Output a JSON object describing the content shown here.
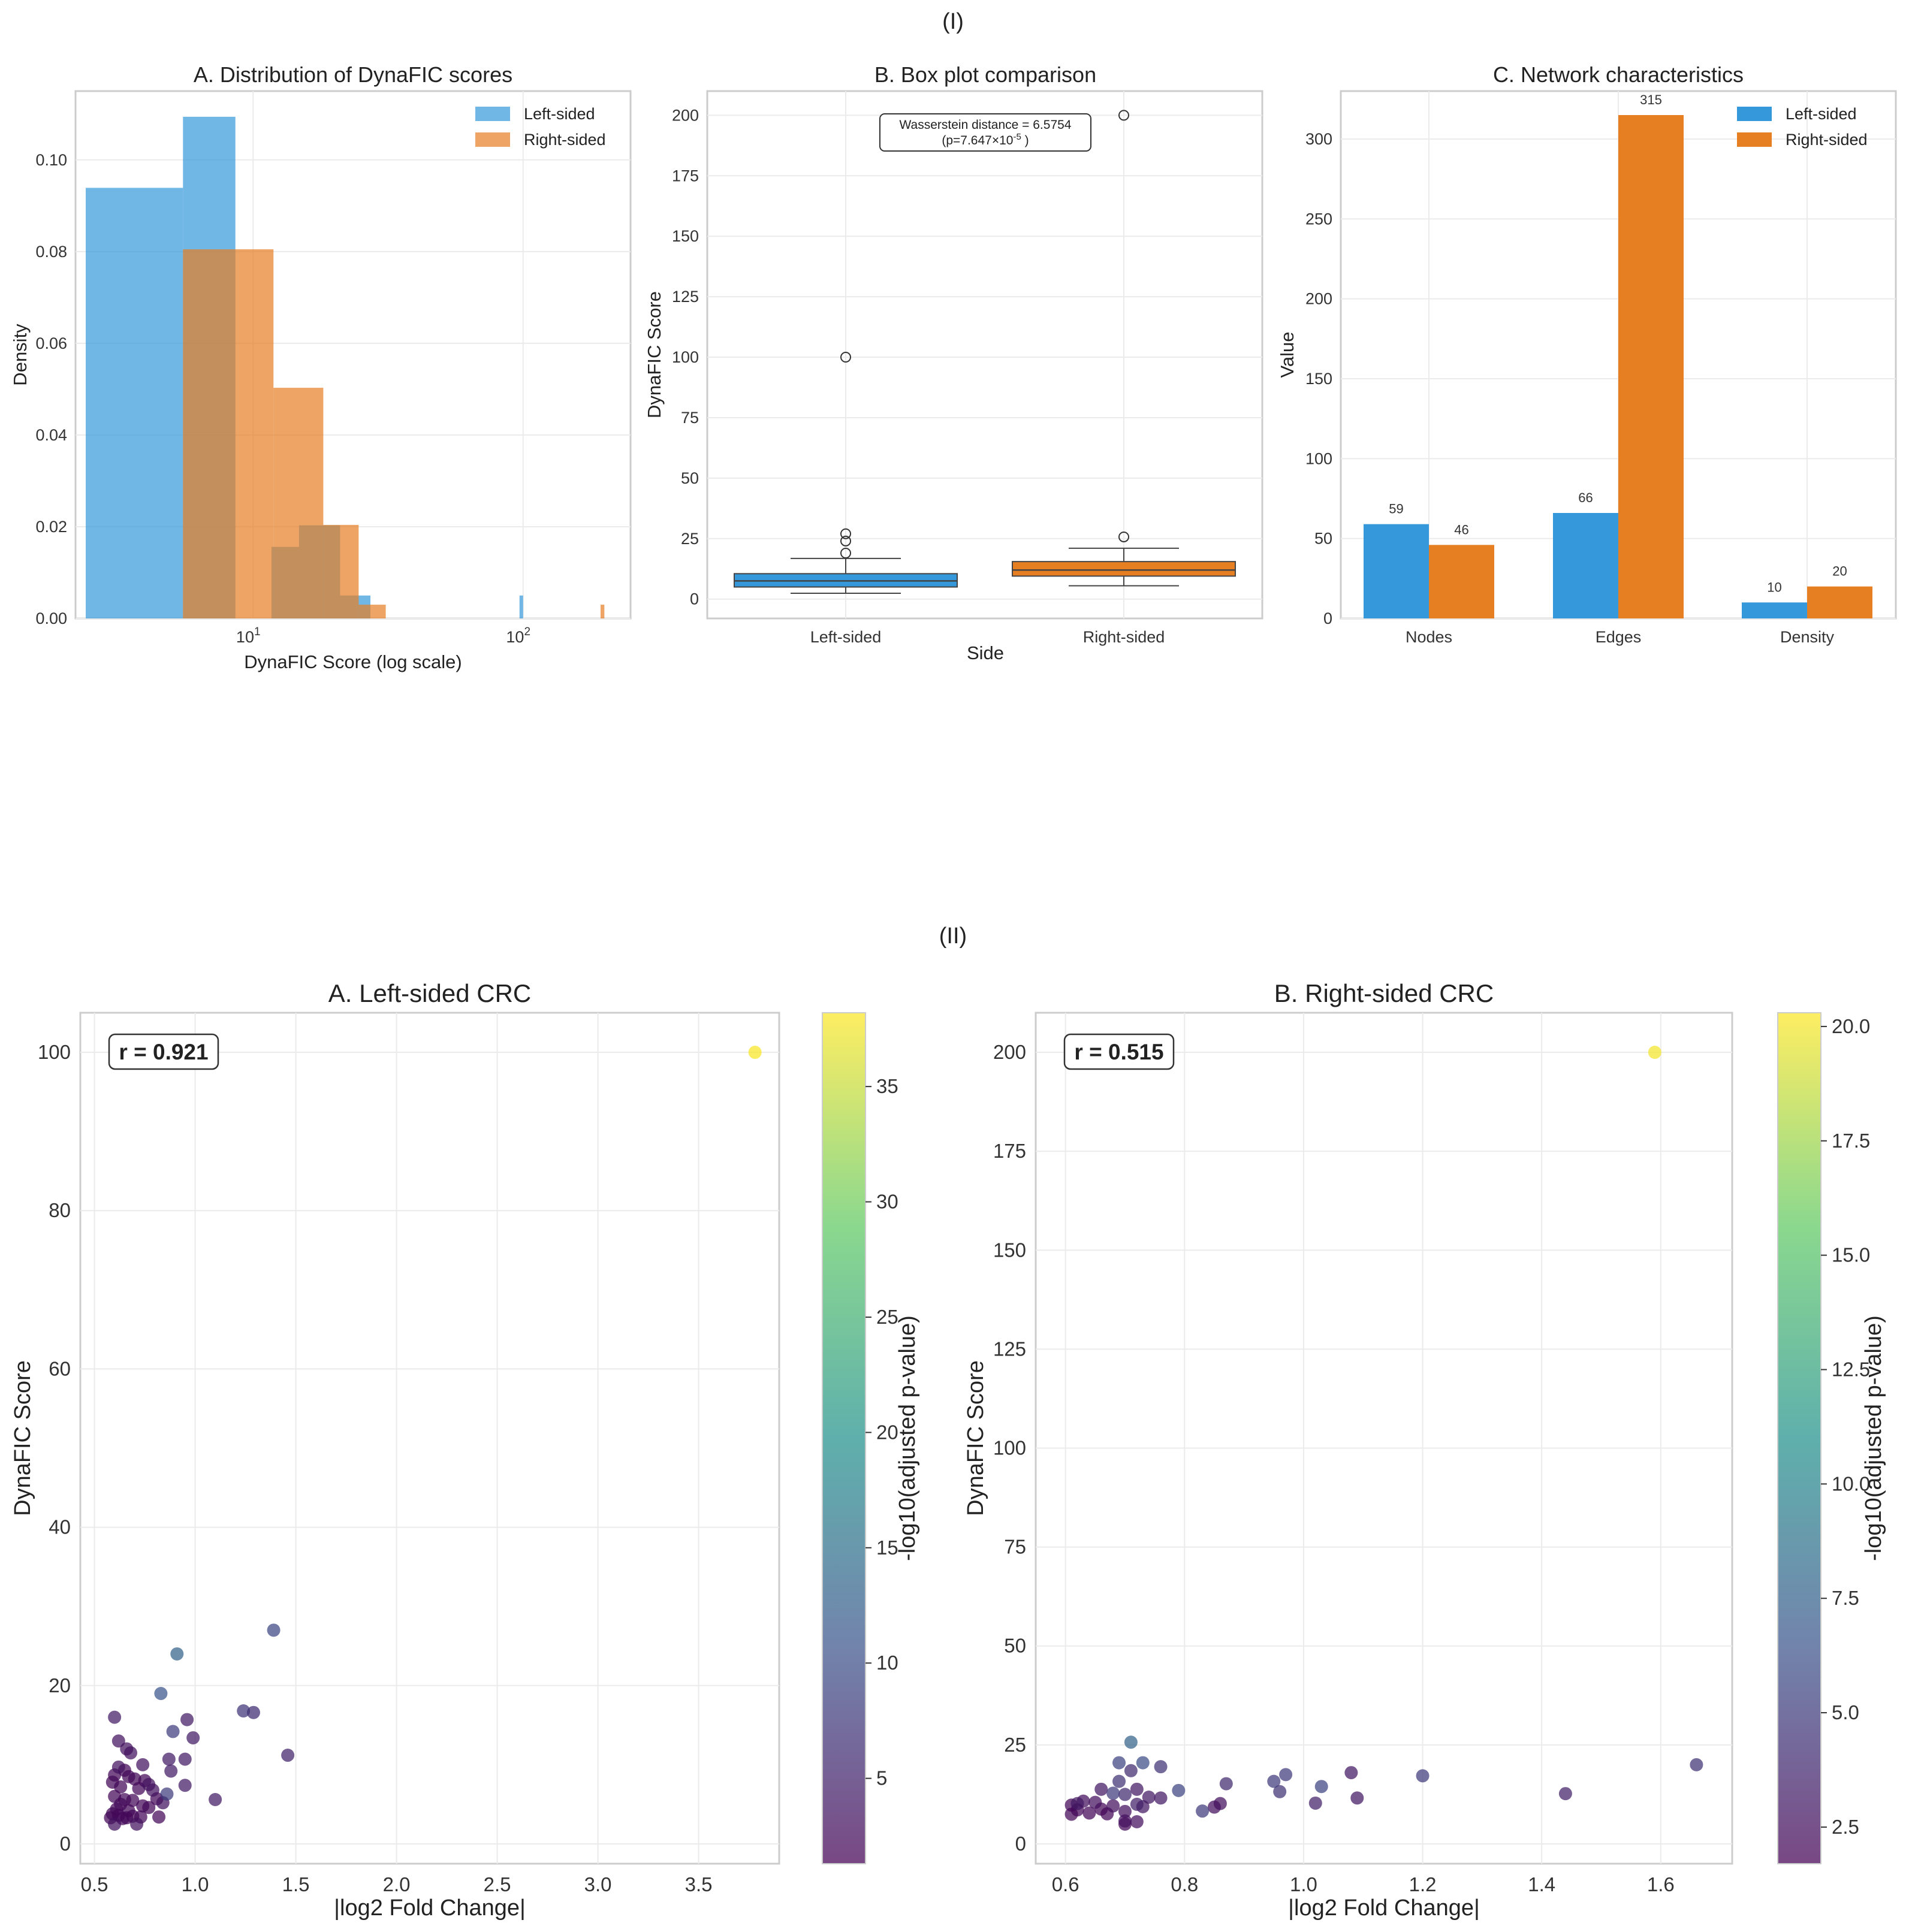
{
  "figure": {
    "section1_label": "(I)",
    "section2_label": "(II)"
  },
  "colors": {
    "left": "#3498db",
    "right": "#e67e22"
  },
  "chart_data": [
    {
      "id": "hist",
      "type": "bar",
      "title": "A. Distribution of DynaFIC scores",
      "xlabel": "DynaFIC Score (log scale)",
      "ylabel": "Density",
      "xscale": "log",
      "xlim": [
        2.2,
        250
      ],
      "ylim": [
        0,
        0.115
      ],
      "yticks": [
        0.0,
        0.02,
        0.04,
        0.06,
        0.08,
        0.1
      ],
      "ytick_labels": [
        "0.00",
        "0.02",
        "0.04",
        "0.06",
        "0.08",
        "0.10"
      ],
      "xticks": [
        10,
        100
      ],
      "xtick_labels": [
        {
          "base": "10",
          "exp": "1"
        },
        {
          "base": "10",
          "exp": "2"
        }
      ],
      "legend": [
        "Left-sided",
        "Right-sided"
      ],
      "legend_position": "top-right",
      "series": [
        {
          "name": "Left-sided",
          "bins": [
            {
              "from": 2.4,
              "to": 5.5,
              "density": 0.0939
            },
            {
              "from": 5.5,
              "to": 8.6,
              "density": 0.1094
            },
            {
              "from": 8.6,
              "to": 11.7,
              "density": 0.0
            },
            {
              "from": 11.7,
              "to": 14.8,
              "density": 0.0156
            },
            {
              "from": 14.8,
              "to": 17.9,
              "density": 0.0203
            },
            {
              "from": 17.9,
              "to": 21.0,
              "density": 0.0203
            },
            {
              "from": 21.0,
              "to": 24.1,
              "density": 0.005
            },
            {
              "from": 24.1,
              "to": 27.2,
              "density": 0.005
            },
            {
              "from": 97.0,
              "to": 100.0,
              "density": 0.005
            }
          ]
        },
        {
          "name": "Right-sided",
          "bins": [
            {
              "from": 5.5,
              "to": 11.9,
              "density": 0.0805
            },
            {
              "from": 11.9,
              "to": 18.2,
              "density": 0.0503
            },
            {
              "from": 18.2,
              "to": 24.6,
              "density": 0.0204
            },
            {
              "from": 24.6,
              "to": 31.0,
              "density": 0.003
            },
            {
              "from": 193.6,
              "to": 200.0,
              "density": 0.003
            }
          ]
        }
      ]
    },
    {
      "id": "box",
      "type": "box",
      "title": "B. Box plot comparison",
      "xlabel": "Side",
      "ylabel": "DynaFIC Score",
      "ylim": [
        -8,
        210
      ],
      "yticks": [
        0,
        25,
        50,
        75,
        100,
        125,
        150,
        175,
        200
      ],
      "categories": [
        "Left-sided",
        "Right-sided"
      ],
      "boxes": [
        {
          "name": "Left-sided",
          "whisker_low": 2.4,
          "q1": 5.0,
          "median": 7.5,
          "q3": 10.5,
          "whisker_high": 16.8,
          "outliers": [
            19.0,
            24.0,
            27.0,
            100.0
          ]
        },
        {
          "name": "Right-sided",
          "whisker_low": 5.5,
          "q1": 9.5,
          "median": 12.0,
          "q3": 15.5,
          "whisker_high": 21.0,
          "outliers": [
            25.7,
            200.0
          ]
        }
      ],
      "annotation_line1": "Wasserstein distance = 6.5754",
      "annotation_line2_prefix": "(p=7.647×10",
      "annotation_line2_exp": "-5",
      "annotation_line2_suffix": " )"
    },
    {
      "id": "net",
      "type": "bar",
      "title": "C. Network characteristics",
      "xlabel": "",
      "ylabel": "Value",
      "ylim": [
        0,
        330
      ],
      "yticks": [
        0,
        50,
        100,
        150,
        200,
        250,
        300
      ],
      "categories": [
        "Nodes",
        "Edges",
        "Density"
      ],
      "legend_position": "top-right",
      "series": [
        {
          "name": "Left-sided",
          "values": [
            59,
            66,
            10
          ],
          "labels": [
            "59",
            "66",
            "10"
          ]
        },
        {
          "name": "Right-sided",
          "values": [
            46,
            315,
            20
          ],
          "labels": [
            "46",
            "315",
            "20"
          ]
        }
      ]
    },
    {
      "id": "scatL",
      "type": "scatter",
      "title": "A. Left-sided CRC",
      "xlabel": "|log2 Fold Change|",
      "ylabel": "DynaFIC Score",
      "colorbar_label": "-log10(adjusted p-value)",
      "xlim": [
        0.43,
        3.9
      ],
      "ylim": [
        -2.5,
        105
      ],
      "xticks": [
        0.5,
        1.0,
        1.5,
        2.0,
        2.5,
        3.0,
        3.5
      ],
      "xtick_labels": [
        "0.5",
        "1.0",
        "1.5",
        "2.0",
        "2.5",
        "3.0",
        "3.5"
      ],
      "yticks": [
        0,
        20,
        40,
        60,
        80,
        100
      ],
      "clim": [
        1.3,
        38.2
      ],
      "cticks": [
        5,
        10,
        15,
        20,
        25,
        30,
        35
      ],
      "ctick_labels": [
        "5",
        "10",
        "15",
        "20",
        "25",
        "30",
        "35"
      ],
      "r_label": "r = 0.921",
      "points": [
        {
          "x": 3.78,
          "y": 100.0,
          "c": 38.0
        },
        {
          "x": 1.39,
          "y": 27.0,
          "c": 9.0
        },
        {
          "x": 0.91,
          "y": 24.0,
          "c": 13.0
        },
        {
          "x": 0.83,
          "y": 19.0,
          "c": 11.0
        },
        {
          "x": 0.6,
          "y": 16.0,
          "c": 4.0
        },
        {
          "x": 0.96,
          "y": 15.7,
          "c": 4.0
        },
        {
          "x": 1.24,
          "y": 16.8,
          "c": 7.0
        },
        {
          "x": 1.29,
          "y": 16.6,
          "c": 6.0
        },
        {
          "x": 0.89,
          "y": 14.2,
          "c": 8.0
        },
        {
          "x": 0.99,
          "y": 13.4,
          "c": 4.0
        },
        {
          "x": 0.62,
          "y": 13.0,
          "c": 3.0
        },
        {
          "x": 0.66,
          "y": 12.0,
          "c": 3.0
        },
        {
          "x": 0.68,
          "y": 11.5,
          "c": 3.0
        },
        {
          "x": 1.46,
          "y": 11.2,
          "c": 5.0
        },
        {
          "x": 0.87,
          "y": 10.7,
          "c": 4.0
        },
        {
          "x": 0.95,
          "y": 10.7,
          "c": 4.0
        },
        {
          "x": 0.74,
          "y": 10.0,
          "c": 3.0
        },
        {
          "x": 0.62,
          "y": 9.7,
          "c": 3.0
        },
        {
          "x": 0.65,
          "y": 9.3,
          "c": 2.0
        },
        {
          "x": 0.88,
          "y": 9.2,
          "c": 4.0
        },
        {
          "x": 0.6,
          "y": 8.7,
          "c": 2.0
        },
        {
          "x": 0.67,
          "y": 8.5,
          "c": 2.0
        },
        {
          "x": 0.7,
          "y": 8.2,
          "c": 2.0
        },
        {
          "x": 0.75,
          "y": 8.0,
          "c": 2.0
        },
        {
          "x": 0.59,
          "y": 7.8,
          "c": 2.0
        },
        {
          "x": 0.77,
          "y": 7.5,
          "c": 3.0
        },
        {
          "x": 0.95,
          "y": 7.4,
          "c": 4.0
        },
        {
          "x": 0.63,
          "y": 7.2,
          "c": 2.0
        },
        {
          "x": 0.72,
          "y": 7.0,
          "c": 2.0
        },
        {
          "x": 0.79,
          "y": 6.8,
          "c": 3.0
        },
        {
          "x": 0.86,
          "y": 6.3,
          "c": 8.0
        },
        {
          "x": 0.6,
          "y": 6.0,
          "c": 2.0
        },
        {
          "x": 0.81,
          "y": 5.7,
          "c": 2.0
        },
        {
          "x": 0.65,
          "y": 5.6,
          "c": 2.0
        },
        {
          "x": 0.69,
          "y": 5.5,
          "c": 2.0
        },
        {
          "x": 1.1,
          "y": 5.6,
          "c": 4.0
        },
        {
          "x": 0.84,
          "y": 5.2,
          "c": 3.0
        },
        {
          "x": 0.63,
          "y": 5.0,
          "c": 2.0
        },
        {
          "x": 0.74,
          "y": 4.8,
          "c": 2.0
        },
        {
          "x": 0.77,
          "y": 4.6,
          "c": 2.0
        },
        {
          "x": 0.61,
          "y": 4.4,
          "c": 2.0
        },
        {
          "x": 0.67,
          "y": 4.2,
          "c": 2.0
        },
        {
          "x": 0.59,
          "y": 3.8,
          "c": 2.0
        },
        {
          "x": 0.62,
          "y": 3.6,
          "c": 2.0
        },
        {
          "x": 0.69,
          "y": 3.5,
          "c": 2.0
        },
        {
          "x": 0.73,
          "y": 3.4,
          "c": 2.0
        },
        {
          "x": 0.82,
          "y": 3.4,
          "c": 2.0
        },
        {
          "x": 0.66,
          "y": 3.3,
          "c": 2.0
        },
        {
          "x": 0.58,
          "y": 3.3,
          "c": 2.0
        },
        {
          "x": 0.64,
          "y": 3.2,
          "c": 2.0
        },
        {
          "x": 0.6,
          "y": 2.5,
          "c": 3.0
        },
        {
          "x": 0.71,
          "y": 2.5,
          "c": 3.0
        }
      ]
    },
    {
      "id": "scatR",
      "type": "scatter",
      "title": "B. Right-sided CRC",
      "xlabel": "|log2 Fold Change|",
      "ylabel": "DynaFIC Score",
      "colorbar_label": "-log10(adjusted p-value)",
      "xlim": [
        0.55,
        1.72
      ],
      "ylim": [
        -5,
        210
      ],
      "xticks": [
        0.6,
        0.8,
        1.0,
        1.2,
        1.4,
        1.6
      ],
      "xtick_labels": [
        "0.6",
        "0.8",
        "1.0",
        "1.2",
        "1.4",
        "1.6"
      ],
      "yticks": [
        0,
        25,
        50,
        75,
        100,
        125,
        150,
        175,
        200
      ],
      "clim": [
        1.7,
        20.3
      ],
      "cticks": [
        2.5,
        5.0,
        7.5,
        10.0,
        12.5,
        15.0,
        17.5,
        20.0
      ],
      "ctick_labels": [
        "2.5",
        "5.0",
        "7.5",
        "10.0",
        "12.5",
        "15.0",
        "17.5",
        "20.0"
      ],
      "r_label": "r = 0.515",
      "points": [
        {
          "x": 1.59,
          "y": 200.0,
          "c": 20.0
        },
        {
          "x": 0.71,
          "y": 25.7,
          "c": 7.5
        },
        {
          "x": 0.73,
          "y": 20.5,
          "c": 6.0
        },
        {
          "x": 0.69,
          "y": 20.5,
          "c": 5.5
        },
        {
          "x": 1.66,
          "y": 20.0,
          "c": 4.5
        },
        {
          "x": 0.76,
          "y": 19.5,
          "c": 4.5
        },
        {
          "x": 0.71,
          "y": 18.5,
          "c": 4.0
        },
        {
          "x": 1.08,
          "y": 18.0,
          "c": 3.0
        },
        {
          "x": 0.97,
          "y": 17.5,
          "c": 5.0
        },
        {
          "x": 1.2,
          "y": 17.2,
          "c": 5.0
        },
        {
          "x": 0.95,
          "y": 15.8,
          "c": 5.0
        },
        {
          "x": 0.69,
          "y": 15.8,
          "c": 4.5
        },
        {
          "x": 0.87,
          "y": 15.2,
          "c": 4.0
        },
        {
          "x": 1.03,
          "y": 14.5,
          "c": 5.5
        },
        {
          "x": 0.79,
          "y": 13.5,
          "c": 5.5
        },
        {
          "x": 0.66,
          "y": 13.8,
          "c": 3.0
        },
        {
          "x": 0.72,
          "y": 13.8,
          "c": 3.0
        },
        {
          "x": 0.96,
          "y": 13.2,
          "c": 4.5
        },
        {
          "x": 0.68,
          "y": 12.8,
          "c": 5.0
        },
        {
          "x": 0.7,
          "y": 12.5,
          "c": 4.0
        },
        {
          "x": 1.44,
          "y": 12.7,
          "c": 3.5
        },
        {
          "x": 0.74,
          "y": 11.8,
          "c": 3.0
        },
        {
          "x": 0.76,
          "y": 11.6,
          "c": 3.0
        },
        {
          "x": 1.09,
          "y": 11.6,
          "c": 3.0
        },
        {
          "x": 0.63,
          "y": 10.8,
          "c": 2.5
        },
        {
          "x": 0.65,
          "y": 10.5,
          "c": 2.5
        },
        {
          "x": 0.62,
          "y": 10.2,
          "c": 3.0
        },
        {
          "x": 0.86,
          "y": 10.2,
          "c": 2.5
        },
        {
          "x": 1.02,
          "y": 10.3,
          "c": 3.5
        },
        {
          "x": 0.72,
          "y": 10.0,
          "c": 3.5
        },
        {
          "x": 0.61,
          "y": 9.8,
          "c": 2.0
        },
        {
          "x": 0.68,
          "y": 9.6,
          "c": 2.5
        },
        {
          "x": 0.73,
          "y": 9.4,
          "c": 3.0
        },
        {
          "x": 0.85,
          "y": 9.3,
          "c": 2.5
        },
        {
          "x": 0.66,
          "y": 8.8,
          "c": 2.0
        },
        {
          "x": 0.62,
          "y": 8.6,
          "c": 2.0
        },
        {
          "x": 0.83,
          "y": 8.3,
          "c": 5.0
        },
        {
          "x": 0.7,
          "y": 8.2,
          "c": 2.5
        },
        {
          "x": 0.64,
          "y": 7.8,
          "c": 2.0
        },
        {
          "x": 0.61,
          "y": 7.5,
          "c": 2.0
        },
        {
          "x": 0.67,
          "y": 7.6,
          "c": 2.0
        },
        {
          "x": 0.7,
          "y": 5.8,
          "c": 2.5
        },
        {
          "x": 0.72,
          "y": 5.6,
          "c": 2.5
        },
        {
          "x": 0.7,
          "y": 5.0,
          "c": 2.0
        }
      ]
    }
  ]
}
